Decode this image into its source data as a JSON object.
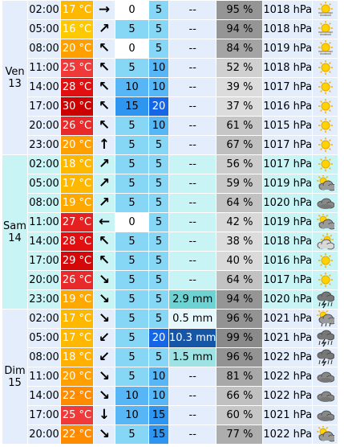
{
  "forecast": {
    "days": [
      {
        "label_day": "Ven",
        "label_num": "13",
        "band": "day-a",
        "rows": [
          {
            "time": "02:00",
            "temp": "17 °C",
            "temp_color": "#ffb800",
            "arrow": "→",
            "wind": "0",
            "wind_color": "#ffffff",
            "gust": "5",
            "gust_color": "#86d6f6",
            "precip": "--",
            "precip_color": "",
            "humidity": "95 %",
            "hum_color": "#959595",
            "pressure": "1018 hPa",
            "icon": "sun-haze-icon"
          },
          {
            "time": "05:00",
            "temp": "16 °C",
            "temp_color": "#ffc900",
            "arrow": "↗",
            "wind": "5",
            "wind_color": "#86d6f6",
            "gust": "5",
            "gust_color": "#86d6f6",
            "precip": "--",
            "precip_color": "",
            "humidity": "94 %",
            "hum_color": "#959595",
            "pressure": "1018 hPa",
            "icon": "sun-haze-icon"
          },
          {
            "time": "08:00",
            "temp": "20 °C",
            "temp_color": "#ffa000",
            "arrow": "↖",
            "wind": "0",
            "wind_color": "#ffffff",
            "gust": "5",
            "gust_color": "#86d6f6",
            "precip": "--",
            "precip_color": "",
            "humidity": "84 %",
            "hum_color": "#a4a4a4",
            "pressure": "1019 hPa",
            "icon": "sun-haze-icon"
          },
          {
            "time": "11:00",
            "temp": "25 °C",
            "temp_color": "#f03a3a",
            "arrow": "↖",
            "wind": "5",
            "wind_color": "#86d6f6",
            "gust": "10",
            "gust_color": "#56b6f6",
            "precip": "--",
            "precip_color": "",
            "humidity": "52 %",
            "hum_color": "#d0d0d0",
            "pressure": "1018 hPa",
            "icon": "sun-icon"
          },
          {
            "time": "14:00",
            "temp": "28 °C",
            "temp_color": "#e01010",
            "arrow": "↖",
            "wind": "10",
            "wind_color": "#56b6f6",
            "gust": "10",
            "gust_color": "#56b6f6",
            "precip": "--",
            "precip_color": "",
            "humidity": "39 %",
            "hum_color": "#dcdcdc",
            "pressure": "1017 hPa",
            "icon": "sun-icon"
          },
          {
            "time": "17:00",
            "temp": "30 °C",
            "temp_color": "#cc0000",
            "arrow": "↖",
            "wind": "15",
            "wind_color": "#2e96f0",
            "gust": "20",
            "gust_color": "#1466e6",
            "precip": "--",
            "precip_color": "",
            "humidity": "37 %",
            "hum_color": "#dcdcdc",
            "pressure": "1016 hPa",
            "icon": "sun-icon"
          },
          {
            "time": "20:00",
            "temp": "26 °C",
            "temp_color": "#e82a2a",
            "arrow": "↖",
            "wind": "5",
            "wind_color": "#86d6f6",
            "gust": "10",
            "gust_color": "#56b6f6",
            "precip": "--",
            "precip_color": "",
            "humidity": "61 %",
            "hum_color": "#c6c6c6",
            "pressure": "1015 hPa",
            "icon": "sun-icon"
          },
          {
            "time": "23:00",
            "temp": "20 °C",
            "temp_color": "#ffa000",
            "arrow": "↑",
            "wind": "5",
            "wind_color": "#86d6f6",
            "gust": "5",
            "gust_color": "#86d6f6",
            "precip": "--",
            "precip_color": "",
            "humidity": "67 %",
            "hum_color": "#bfbfbf",
            "pressure": "1017 hPa",
            "icon": "sun-icon"
          }
        ]
      },
      {
        "label_day": "Sam",
        "label_num": "14",
        "band": "day-b",
        "rows": [
          {
            "time": "02:00",
            "temp": "18 °C",
            "temp_color": "#ffb800",
            "arrow": "↗",
            "wind": "5",
            "wind_color": "#86d6f6",
            "gust": "5",
            "gust_color": "#86d6f6",
            "precip": "--",
            "precip_color": "",
            "humidity": "56 %",
            "hum_color": "#cccccc",
            "pressure": "1017 hPa",
            "icon": "sun-icon"
          },
          {
            "time": "05:00",
            "temp": "17 °C",
            "temp_color": "#ffb800",
            "arrow": "↗",
            "wind": "5",
            "wind_color": "#86d6f6",
            "gust": "5",
            "gust_color": "#86d6f6",
            "precip": "--",
            "precip_color": "",
            "humidity": "59 %",
            "hum_color": "#c8c8c8",
            "pressure": "1019 hPa",
            "icon": "sun-cloud-icon"
          },
          {
            "time": "08:00",
            "temp": "19 °C",
            "temp_color": "#ffa800",
            "arrow": "↗",
            "wind": "5",
            "wind_color": "#86d6f6",
            "gust": "5",
            "gust_color": "#86d6f6",
            "precip": "--",
            "precip_color": "",
            "humidity": "64 %",
            "hum_color": "#c2c2c2",
            "pressure": "1020 hPa",
            "icon": "cloud-icon"
          },
          {
            "time": "11:00",
            "temp": "27 °C",
            "temp_color": "#e62020",
            "arrow": "←",
            "wind": "0",
            "wind_color": "#ffffff",
            "gust": "5",
            "gust_color": "#86d6f6",
            "precip": "--",
            "precip_color": "",
            "humidity": "42 %",
            "hum_color": "#d8d8d8",
            "pressure": "1019 hPa",
            "icon": "sun-cloud-icon"
          },
          {
            "time": "14:00",
            "temp": "28 °C",
            "temp_color": "#e01010",
            "arrow": "↖",
            "wind": "5",
            "wind_color": "#86d6f6",
            "gust": "5",
            "gust_color": "#86d6f6",
            "precip": "--",
            "precip_color": "",
            "humidity": "38 %",
            "hum_color": "#dcdcdc",
            "pressure": "1018 hPa",
            "icon": "sun-small-cloud-icon"
          },
          {
            "time": "17:00",
            "temp": "29 °C",
            "temp_color": "#d40808",
            "arrow": "↖",
            "wind": "5",
            "wind_color": "#86d6f6",
            "gust": "5",
            "gust_color": "#86d6f6",
            "precip": "--",
            "precip_color": "",
            "humidity": "40 %",
            "hum_color": "#dadada",
            "pressure": "1016 hPa",
            "icon": "sun-icon"
          },
          {
            "time": "20:00",
            "temp": "26 °C",
            "temp_color": "#e82a2a",
            "arrow": "↘",
            "wind": "5",
            "wind_color": "#86d6f6",
            "gust": "5",
            "gust_color": "#86d6f6",
            "precip": "--",
            "precip_color": "",
            "humidity": "64 %",
            "hum_color": "#c2c2c2",
            "pressure": "1017 hPa",
            "icon": "sun-icon"
          },
          {
            "time": "23:00",
            "temp": "19 °C",
            "temp_color": "#ffa800",
            "arrow": "↘",
            "wind": "5",
            "wind_color": "#86d6f6",
            "gust": "5",
            "gust_color": "#86d6f6",
            "precip": "2.9 mm",
            "precip_color": "#6fd2d2",
            "humidity": "94 %",
            "hum_color": "#959595",
            "pressure": "1020 hPa",
            "icon": "storm-icon"
          }
        ]
      },
      {
        "label_day": "Dim",
        "label_num": "15",
        "band": "day-a",
        "rows": [
          {
            "time": "02:00",
            "temp": "17 °C",
            "temp_color": "#ffb800",
            "arrow": "↘",
            "wind": "5",
            "wind_color": "#86d6f6",
            "gust": "5",
            "gust_color": "#86d6f6",
            "precip": "0.5 mm",
            "precip_color": "#e6f8fb",
            "humidity": "96 %",
            "hum_color": "#939393",
            "pressure": "1021 hPa",
            "icon": "sun-rain-icon"
          },
          {
            "time": "05:00",
            "temp": "17 °C",
            "temp_color": "#ffb800",
            "arrow": "↙",
            "wind": "5",
            "wind_color": "#86d6f6",
            "gust": "20",
            "gust_color": "#1466e6",
            "precip": "10.3 mm",
            "precip_color": "#1656a6",
            "humidity": "99 %",
            "hum_color": "#8a8a8a",
            "pressure": "1021 hPa",
            "icon": "storm-icon"
          },
          {
            "time": "08:00",
            "temp": "18 °C",
            "temp_color": "#ffb000",
            "arrow": "↙",
            "wind": "5",
            "wind_color": "#86d6f6",
            "gust": "5",
            "gust_color": "#86d6f6",
            "precip": "1.5 mm",
            "precip_color": "#9ee3e3",
            "humidity": "96 %",
            "hum_color": "#939393",
            "pressure": "1022 hPa",
            "icon": "storm-icon"
          },
          {
            "time": "11:00",
            "temp": "20 °C",
            "temp_color": "#ffa000",
            "arrow": "↘",
            "wind": "5",
            "wind_color": "#86d6f6",
            "gust": "10",
            "gust_color": "#56b6f6",
            "precip": "--",
            "precip_color": "",
            "humidity": "81 %",
            "hum_color": "#a8a8a8",
            "pressure": "1022 hPa",
            "icon": "cloud-icon"
          },
          {
            "time": "14:00",
            "temp": "22 °C",
            "temp_color": "#ff8c00",
            "arrow": "↘",
            "wind": "10",
            "wind_color": "#56b6f6",
            "gust": "10",
            "gust_color": "#56b6f6",
            "precip": "--",
            "precip_color": "",
            "humidity": "66 %",
            "hum_color": "#c0c0c0",
            "pressure": "1022 hPa",
            "icon": "cloud-icon"
          },
          {
            "time": "17:00",
            "temp": "25 °C",
            "temp_color": "#f03a3a",
            "arrow": "↓",
            "wind": "10",
            "wind_color": "#56b6f6",
            "gust": "15",
            "gust_color": "#2e96f0",
            "precip": "--",
            "precip_color": "",
            "humidity": "60 %",
            "hum_color": "#c6c6c6",
            "pressure": "1021 hPa",
            "icon": "cloud-icon"
          },
          {
            "time": "20:00",
            "temp": "22 °C",
            "temp_color": "#ff8c00",
            "arrow": "↘",
            "wind": "5",
            "wind_color": "#86d6f6",
            "gust": "15",
            "gust_color": "#2e96f0",
            "precip": "--",
            "precip_color": "",
            "humidity": "77 %",
            "hum_color": "#adadad",
            "pressure": "1022 hPa",
            "icon": "sun-cloud-icon"
          }
        ]
      }
    ]
  }
}
